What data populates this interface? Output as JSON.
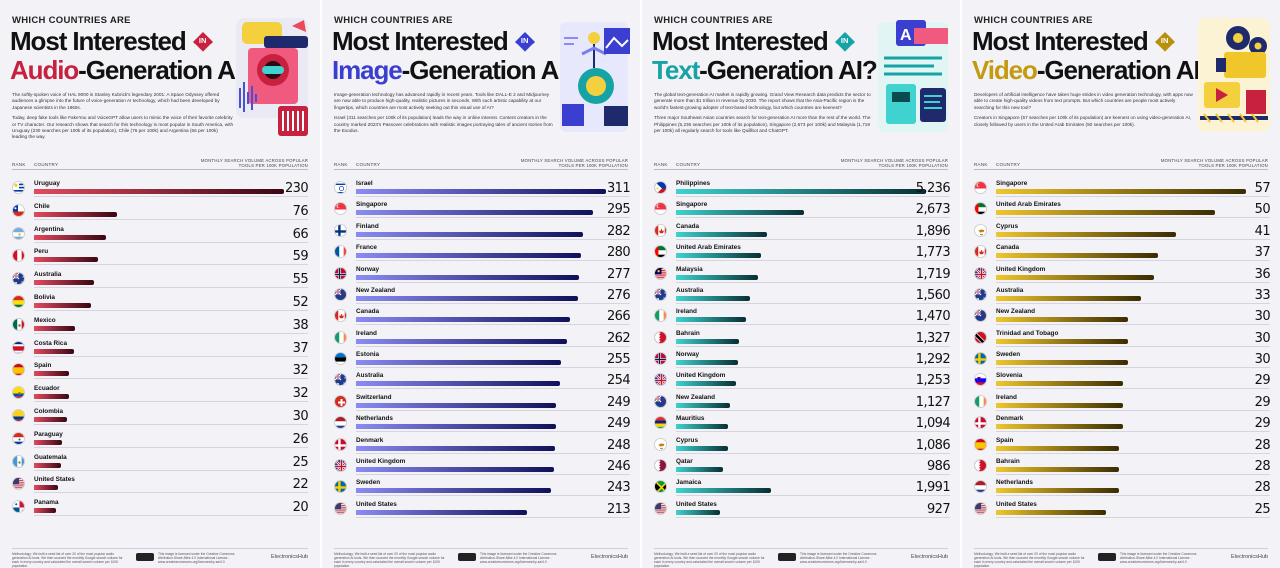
{
  "header": {
    "kicker": "WHICH COUNTRIES ARE",
    "title_line1": "Most Interested",
    "badge_text": "IN",
    "title_suffix": "-Generation AI?"
  },
  "columns": {
    "rank": "RANK",
    "country": "COUNTRY",
    "metric": "MONTHLY SEARCH VOLUME ACROSS POPULAR TOOLS PER 100K POPULATION"
  },
  "footer": {
    "methodology": "Methodology: We built a seed list of over 20 of the most popular audio generation AI tools. We then sourced the monthly Google search volume for each in every country and calculated the overall search volume per 100K population.",
    "license": "This image is licensed under the Creative Commons Attribution-Share Alike 4.0 International License - www.creativecommons.org/licenses/by-sa/4.0",
    "brand": "ElectronicsHub"
  },
  "chart_data": [
    {
      "type": "bar",
      "key": "audio",
      "title_keyword": "Audio",
      "accent": "#c8203f",
      "gradient": [
        "#e14a60",
        "#3a0612"
      ],
      "badge_color": "#c8203f",
      "intro": [
        "The softly-spoken voice of HAL 9000 in Stanley Kubrick's legendary 2001: A Space Odyssey offered audiences a glimpse into the future of voice-generation AI technology, which had been developed by Japanese scientists in the 1960s.",
        "Today, deep fake tools like FakeYou and VoiceGPT allow users to mimic the voice of their favorite celebrity or TV character. Our research shows that search for this technology is most popular in South America, with Uruguay (230 searches per 100k of its population), Chile (76 per 100k) and Argentina (66 per 100k) leading the way."
      ],
      "categories": [
        "Uruguay",
        "Chile",
        "Argentina",
        "Peru",
        "Australia",
        "Bolivia",
        "Mexico",
        "Costa Rica",
        "Spain",
        "Ecuador",
        "Colombia",
        "Paraguay",
        "Guatemala",
        "United States",
        "Panama"
      ],
      "flags": [
        "uy",
        "cl",
        "ar",
        "pe",
        "au",
        "bo",
        "mx",
        "cr",
        "es",
        "ec",
        "co",
        "py",
        "gt",
        "us",
        "pa"
      ],
      "values": [
        230,
        76,
        66,
        59,
        55,
        52,
        38,
        37,
        32,
        32,
        30,
        26,
        25,
        22,
        20
      ],
      "value_labels": [
        "230",
        "76",
        "66",
        "59",
        "55",
        "52",
        "38",
        "37",
        "32",
        "32",
        "30",
        "26",
        "25",
        "22",
        "20"
      ],
      "xlim": [
        0,
        230
      ]
    },
    {
      "type": "bar",
      "key": "image",
      "title_keyword": "Image",
      "accent": "#3b3fcf",
      "gradient": [
        "#8a8cf2",
        "#10115a"
      ],
      "badge_color": "#3b3fcf",
      "intro": [
        "Image-generation technology has advanced rapidly in recent years. Tools like DALL-E 2 and Midjourney are now able to produce high-quality, realistic pictures in seconds. With such artistic capability at our fingertips, which countries are most actively seeking out this visual use of AI?",
        "Israel (311 searches per 100k of its population) leads the way in online interest. Content creators in the country marked 2023's Passover celebrations with realistic images portraying tales of ancient stories from the Exodus."
      ],
      "categories": [
        "Israel",
        "Singapore",
        "Finland",
        "France",
        "Norway",
        "New Zealand",
        "Canada",
        "Ireland",
        "Estonia",
        "Australia",
        "Switzerland",
        "Netherlands",
        "Denmark",
        "United Kingdom",
        "Sweden",
        "United States"
      ],
      "flags": [
        "il",
        "sg",
        "fi",
        "fr",
        "no",
        "nz",
        "ca",
        "ie",
        "ee",
        "au",
        "ch",
        "nl",
        "dk",
        "gb",
        "se",
        "us"
      ],
      "values": [
        311,
        295,
        282,
        280,
        277,
        276,
        266,
        262,
        255,
        254,
        249,
        249,
        248,
        246,
        243,
        213
      ],
      "value_labels": [
        "311",
        "295",
        "282",
        "280",
        "277",
        "276",
        "266",
        "262",
        "255",
        "254",
        "249",
        "249",
        "248",
        "246",
        "243",
        "213"
      ],
      "xlim": [
        0,
        311
      ]
    },
    {
      "type": "bar",
      "key": "text",
      "title_keyword": "Text",
      "accent": "#15a3a6",
      "gradient": [
        "#3fd2cf",
        "#072f33"
      ],
      "badge_color": "#15a3a6",
      "intro": [
        "The global text-generation AI market is rapidly growing. Grand View Research data predicts the sector to generate more than $1 trillion in revenue by 2030. The report shows that the Asia-Pacific region is the world's fastest-growing adopter of text-based technology, but which countries are keenest?",
        "Three major Southeast Asian countries search for text-generation AI more than the rest of the world. The Philippines (5,236 searches per 100k of its population), Singapore (2,673 per 100k) and Malaysia (1,719 per 100k) all regularly search for tools like Quillbot and ChatGPT."
      ],
      "categories": [
        "Philippines",
        "Singapore",
        "Canada",
        "United Arab Emirates",
        "Malaysia",
        "Australia",
        "Ireland",
        "Bahrain",
        "Norway",
        "United Kingdom",
        "New Zealand",
        "Mauritius",
        "Cyprus",
        "Qatar",
        "Jamaica",
        "United States"
      ],
      "flags": [
        "ph",
        "sg",
        "ca",
        "ae",
        "my",
        "au",
        "ie",
        "bh",
        "no",
        "gb",
        "nz",
        "mu",
        "cy",
        "qa",
        "jm",
        "us"
      ],
      "values": [
        5236,
        2673,
        1896,
        1773,
        1719,
        1560,
        1470,
        1327,
        1292,
        1253,
        1127,
        1094,
        1086,
        986,
        1991,
        927
      ],
      "value_labels": [
        "5,236",
        "2,673",
        "1,896",
        "1,773",
        "1,719",
        "1,560",
        "1,470",
        "1,327",
        "1,292",
        "1,253",
        "1,127",
        "1,094",
        "1,086",
        "986",
        "1,991",
        "927"
      ],
      "xlim": [
        0,
        5236
      ]
    },
    {
      "type": "bar",
      "key": "video",
      "title_keyword": "Video",
      "accent": "#c49a10",
      "gradient": [
        "#f0c62b",
        "#3a2c02"
      ],
      "badge_color": "#b8900c",
      "intro": [
        "Developers of artificial intelligence have taken huge strides in video generation technology, with apps now able to create high-quality videos from text prompts. But which countries are people most actively searching for this new tool?",
        "Creators in Singapore (57 searches per 100k of its population) are keenest on using video-generation AI, closely followed by users in the United Arab Emirates (50 searches per 100k)."
      ],
      "categories": [
        "Singapore",
        "United Arab Emirates",
        "Cyprus",
        "Canada",
        "United Kingdom",
        "Australia",
        "New Zealand",
        "Trinidad and Tobago",
        "Sweden",
        "Slovenia",
        "Ireland",
        "Denmark",
        "Spain",
        "Bahrain",
        "Netherlands",
        "United States"
      ],
      "flags": [
        "sg",
        "ae",
        "cy",
        "ca",
        "gb",
        "au",
        "nz",
        "tt",
        "se",
        "si",
        "ie",
        "dk",
        "es",
        "bh",
        "nl",
        "us"
      ],
      "values": [
        57,
        50,
        41,
        37,
        36,
        33,
        30,
        30,
        30,
        29,
        29,
        29,
        28,
        28,
        28,
        25
      ],
      "value_labels": [
        "57",
        "50",
        "41",
        "37",
        "36",
        "33",
        "30",
        "30",
        "30",
        "29",
        "29",
        "29",
        "28",
        "28",
        "28",
        "25"
      ],
      "xlim": [
        0,
        57
      ]
    }
  ]
}
